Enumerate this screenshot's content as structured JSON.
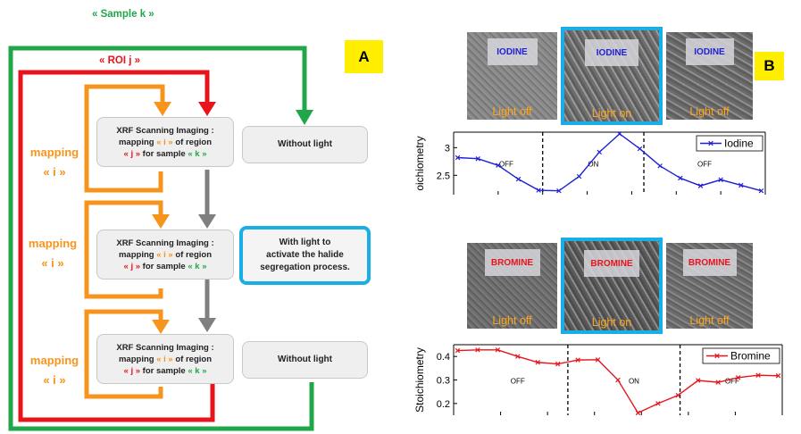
{
  "panel_a": {
    "badge": "A",
    "sample_loop": "« Sample k »",
    "roi_loop": "« ROI j »",
    "mapping_labels": [
      {
        "line1": "mapping",
        "line2": "« i »"
      },
      {
        "line1": "mapping",
        "line2": "« i »"
      },
      {
        "line1": "mapping",
        "line2": "« i »"
      }
    ],
    "xrf_box": {
      "title": "XRF Scanning Imaging :",
      "mapping_word": "mapping",
      "i_token": "« i »",
      "of_region": "of region",
      "j_token": "« j »",
      "for_sample": "for sample",
      "k_token": "« k »"
    },
    "conditions": [
      {
        "line1": "Without light",
        "line2": "",
        "line3": ""
      },
      {
        "line1": "With light to",
        "line2": "activate the  halide",
        "line3": "segregation process."
      },
      {
        "line1": "Without light",
        "line2": "",
        "line3": ""
      }
    ],
    "colors": {
      "sample": "#21a64a",
      "roi": "#e8141c",
      "mapping": "#f7941d",
      "flow": "#7f7f7f",
      "highlight": "#1aaee6"
    }
  },
  "panel_b": {
    "badge": "B",
    "iodine_images": [
      {
        "element": "IODINE",
        "state": "Light off"
      },
      {
        "element": "IODINE",
        "state": "Light on"
      },
      {
        "element": "IODINE",
        "state": "Light off"
      }
    ],
    "bromine_images": [
      {
        "element": "BROMINE",
        "state": "Light off"
      },
      {
        "element": "BROMINE",
        "state": "Light on"
      },
      {
        "element": "BROMINE",
        "state": "Light off"
      }
    ]
  },
  "chart_data": [
    {
      "type": "line",
      "ylabel": "oichiometry",
      "ylim": [
        2.15,
        3.28
      ],
      "yticks": [
        2.5,
        3
      ],
      "x": [
        1,
        2,
        3,
        4,
        5,
        6,
        7,
        8,
        9,
        10,
        11,
        12,
        13,
        14,
        15,
        16
      ],
      "series": [
        {
          "name": "Iodine",
          "color": "#1f1fd6",
          "values": [
            2.82,
            2.8,
            2.68,
            2.43,
            2.23,
            2.22,
            2.48,
            2.92,
            3.25,
            2.98,
            2.67,
            2.45,
            2.31,
            2.42,
            2.32,
            2.22
          ]
        }
      ],
      "dividers": [
        5.2,
        10.2
      ],
      "regions": [
        {
          "label": "OFF",
          "x": 3.4
        },
        {
          "label": "ON",
          "x": 7.7
        },
        {
          "label": "OFF",
          "x": 13.2
        }
      ],
      "legend": "top-right",
      "grid": false
    },
    {
      "type": "line",
      "ylabel": "Stoichiometry",
      "ylim": [
        0.15,
        0.45
      ],
      "yticks": [
        0.2,
        0.3,
        0.4
      ],
      "x": [
        1,
        2,
        3,
        4,
        5,
        6,
        7,
        8,
        9,
        10,
        11,
        12,
        13,
        14,
        15,
        16,
        17
      ],
      "series": [
        {
          "name": "Bromine",
          "color": "#e8141c",
          "values": [
            0.425,
            0.428,
            0.428,
            0.4,
            0.375,
            0.368,
            0.385,
            0.386,
            0.3,
            0.16,
            0.2,
            0.235,
            0.298,
            0.29,
            0.31,
            0.32,
            0.318
          ]
        }
      ],
      "dividers": [
        6.5,
        12.1
      ],
      "regions": [
        {
          "label": "OFF",
          "x": 4.0
        },
        {
          "label": "ON",
          "x": 9.8
        },
        {
          "label": "OFF",
          "x": 14.7
        }
      ],
      "legend": "top-right",
      "grid": false
    }
  ]
}
